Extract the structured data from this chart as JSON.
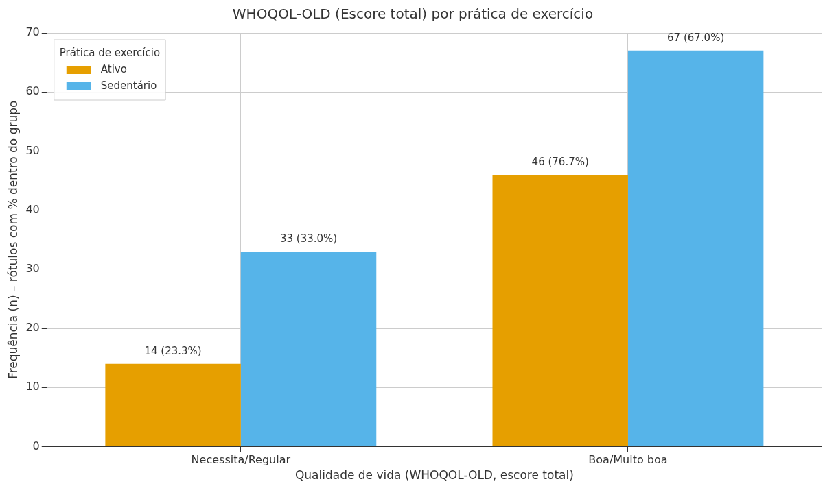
{
  "chart_data": {
    "type": "bar",
    "title": "WHOQOL-OLD (Escore total) por prática de exercício",
    "xlabel": "Qualidade de vida (WHOQOL-OLD, escore total)",
    "ylabel": "Frequência (n) – rótulos com % dentro do grupo",
    "legend_title": "Prática de exercício",
    "categories": [
      "Necessita/Regular",
      "Boa/Muito boa"
    ],
    "series": [
      {
        "name": "Ativo",
        "color": "#e69f00",
        "values": [
          14,
          46
        ],
        "value_labels": [
          "14 (23.3%)",
          "46 (76.7%)"
        ]
      },
      {
        "name": "Sedentário",
        "color": "#56b4e9",
        "values": [
          33,
          67
        ],
        "value_labels": [
          "33 (33.0%)",
          "67 (67.0%)"
        ]
      }
    ],
    "ylim": [
      0,
      70
    ],
    "yticks": [
      0,
      10,
      20,
      30,
      40,
      50,
      60,
      70
    ],
    "grid": true,
    "legend": "top left"
  }
}
